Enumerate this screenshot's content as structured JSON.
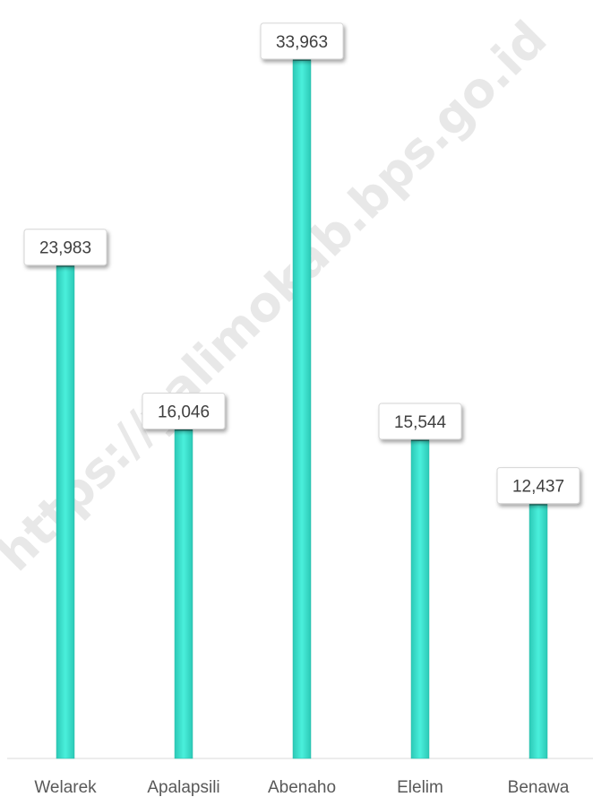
{
  "watermark": "https://yalimokab.bps.go.id",
  "colors": {
    "bar": "#3fe3cf",
    "bar_edge": "#2ab9a8",
    "bar_cap": "#1f7f73"
  },
  "chart_data": {
    "type": "bar",
    "categories": [
      "Welarek",
      "Apalapsili",
      "Abenaho",
      "Elelim",
      "Benawa"
    ],
    "values": [
      23983,
      16046,
      33963,
      15544,
      12437
    ],
    "value_labels": [
      "23,983",
      "16,046",
      "33,963",
      "15,544",
      "12,437"
    ],
    "ylim": [
      0,
      35000
    ],
    "grid": false,
    "legend": "none"
  }
}
